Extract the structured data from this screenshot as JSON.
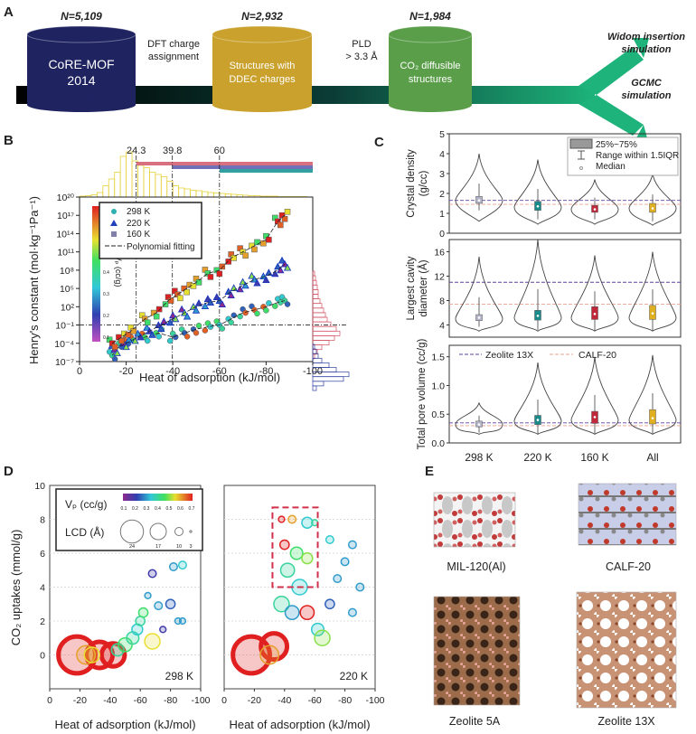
{
  "panel_labels": {
    "a": "A",
    "b": "B",
    "c": "C",
    "d": "D",
    "e": "E"
  },
  "panel_a": {
    "stages": [
      {
        "n": "N=5,109",
        "label1": "CoRE-MOF",
        "label2": "2014",
        "color": "#1f2360"
      },
      {
        "n": "N=2,932",
        "label1": "Structures with",
        "label2": "DDEC charges",
        "color": "#c9a12c"
      },
      {
        "n": "N=1,984",
        "label1": "CO₂ diffusible",
        "label2": "structures",
        "color": "#5a9e4a"
      }
    ],
    "steps": [
      {
        "line1": "DFT charge",
        "line2": "assignment"
      },
      {
        "line1": "PLD",
        "line2": "> 3.3 Å"
      }
    ],
    "outputs": [
      {
        "line1": "Widom insertion",
        "line2": "simulation"
      },
      {
        "line1": "GCMC",
        "line2": "simulation"
      }
    ],
    "arrow_color_start": "#000000",
    "arrow_color_end": "#1db37a"
  },
  "chart_data": [
    {
      "id": "B",
      "type": "scatter",
      "xlabel": "Heat of adsorption (kJ/mol)",
      "ylabel": "Henry's constant (mol·kg⁻¹Pa⁻¹)",
      "xlim": [
        0,
        -100
      ],
      "ylim": [
        1e-07,
        1e+20
      ],
      "yscale": "log",
      "xticks": [
        "0",
        "-20",
        "-40",
        "-60",
        "-80",
        "-100"
      ],
      "yticks": [
        "10⁻⁷",
        "10⁻⁴",
        "10⁻¹",
        "10²",
        "10⁵",
        "10⁸",
        "10¹¹",
        "10¹⁴",
        "10¹⁷",
        "10²⁰"
      ],
      "threshold_labels": [
        "24.3",
        "39.8",
        "60"
      ],
      "threshold_x": [
        -24.3,
        -39.8,
        -60
      ],
      "threshold_y": 0.1,
      "legend": {
        "placement": "top-left",
        "entries": [
          "298 K",
          "220 K",
          "160 K",
          "Polynomial fitting"
        ]
      },
      "colorbar": {
        "label": "Vₚ (cc/g)",
        "ticks": [
          "0.1",
          "0.2",
          "0.3",
          "0.4",
          "0.5",
          "0.6",
          "0.7"
        ]
      },
      "series": [
        {
          "name": "298 K",
          "marker": "circle",
          "points": [
            [
              -14,
              1e-06
            ],
            [
              -18,
              0.0001
            ],
            [
              -22,
              0.0003
            ],
            [
              -28,
              0.001
            ],
            [
              -34,
              0.005
            ],
            [
              -40,
              0.001
            ],
            [
              -45,
              0.005
            ],
            [
              -50,
              0.02
            ],
            [
              -55,
              0.05
            ],
            [
              -60,
              0.1
            ],
            [
              -65,
              1
            ],
            [
              -70,
              10
            ],
            [
              -75,
              30
            ],
            [
              -80,
              100.0
            ],
            [
              -85,
              500.0
            ],
            [
              -88,
              1000.0
            ]
          ]
        },
        {
          "name": "220 K",
          "marker": "triangle",
          "points": [
            [
              -15,
              1e-05
            ],
            [
              -20,
              0.0001
            ],
            [
              -25,
              0.001
            ],
            [
              -30,
              0.01
            ],
            [
              -35,
              0.1
            ],
            [
              -40,
              1
            ],
            [
              -45,
              10
            ],
            [
              -50,
              100.0
            ],
            [
              -55,
              500.0
            ],
            [
              -60,
              1000.0
            ],
            [
              -65,
              30000.0
            ],
            [
              -70,
              300000.0
            ],
            [
              -75,
              3000000.0
            ],
            [
              -80,
              10000000.0
            ],
            [
              -85,
              100000000.0
            ],
            [
              -88,
              1000000000.0
            ]
          ]
        },
        {
          "name": "160 K",
          "marker": "square",
          "points": [
            [
              -14,
              0.0001
            ],
            [
              -18,
              0.001
            ],
            [
              -22,
              0.01
            ],
            [
              -28,
              1
            ],
            [
              -33,
              10
            ],
            [
              -38,
              1000.0
            ],
            [
              -42,
              10000.0
            ],
            [
              -46,
              100000.0
            ],
            [
              -50,
              1000000.0
            ],
            [
              -55,
              30000000.0
            ],
            [
              -60,
              100000000.0
            ],
            [
              -65,
              10000000000.0
            ],
            [
              -70,
              100000000000.0
            ],
            [
              -75,
              1000000000000.0
            ],
            [
              -80,
              10000000000000.0
            ],
            [
              -85,
              1e+16
            ],
            [
              -88,
              1e+17
            ]
          ]
        }
      ],
      "top_histogram": [
        2,
        3,
        5,
        10,
        25,
        40,
        55,
        90,
        100,
        80,
        70,
        65,
        55,
        50,
        45,
        35,
        25,
        20,
        18,
        15,
        14,
        12,
        10,
        9,
        8,
        7,
        6,
        5,
        4,
        3,
        3,
        2,
        2,
        2,
        1,
        1,
        1,
        1,
        1,
        0
      ],
      "right_histogram_red": [
        2,
        3,
        4,
        5,
        6,
        6,
        8,
        10,
        12,
        14,
        16,
        20,
        26,
        30,
        24,
        18,
        10,
        5,
        2
      ],
      "right_histogram_blue": [
        0,
        0,
        0,
        0,
        0,
        0,
        0,
        0,
        0,
        0,
        2,
        4,
        6,
        10,
        18,
        26,
        40,
        34,
        12,
        4
      ]
    },
    {
      "id": "C",
      "type": "violin",
      "categories": [
        "298 K",
        "220 K",
        "160 K",
        "All"
      ],
      "box_colors": [
        "#b4b4c8",
        "#1a8a8a",
        "#c0283a",
        "#e0b020"
      ],
      "legend": {
        "placement": "top-right",
        "entries": [
          "25%~75%",
          "Range within 1.5IQR",
          "Median"
        ]
      },
      "reference_legend": [
        "Zeolite 13X",
        "CALF-20"
      ],
      "panels": [
        {
          "ylabel": "Crystal density (g/cc)",
          "ylim": [
            0,
            5
          ],
          "yticks": [
            "0",
            "1",
            "2",
            "3",
            "4",
            "5"
          ],
          "ref_zeolite13x": 1.65,
          "ref_calf20": 1.45,
          "stats": [
            {
              "min": 0.6,
              "q1": 1.5,
              "median": 1.65,
              "q3": 1.85,
              "max": 4.0,
              "mode": 1.65
            },
            {
              "min": 0.45,
              "q1": 1.15,
              "median": 1.35,
              "q3": 1.6,
              "max": 3.7,
              "mode": 1.3
            },
            {
              "min": 0.45,
              "q1": 1.05,
              "median": 1.2,
              "q3": 1.4,
              "max": 2.7,
              "mode": 1.2
            },
            {
              "min": 0.4,
              "q1": 1.05,
              "median": 1.25,
              "q3": 1.5,
              "max": 3.0,
              "mode": 1.25
            }
          ]
        },
        {
          "ylabel": "Largest cavity diameter (Å)",
          "ylim": [
            2,
            18
          ],
          "yticks": [
            "4",
            "8",
            "12",
            "16"
          ],
          "ref_zeolite13x": 11.0,
          "ref_calf20": 7.4,
          "stats": [
            {
              "min": 3,
              "q1": 4.7,
              "median": 5.2,
              "q3": 5.7,
              "max": 15.2,
              "mode": 5.0
            },
            {
              "min": 3,
              "q1": 4.8,
              "median": 5.5,
              "q3": 6.4,
              "max": 18,
              "mode": 5.2
            },
            {
              "min": 3,
              "q1": 4.9,
              "median": 5.8,
              "q3": 7.0,
              "max": 15.4,
              "mode": 5.2
            },
            {
              "min": 3,
              "q1": 4.9,
              "median": 5.9,
              "q3": 7.2,
              "max": 16,
              "mode": 5.2
            }
          ]
        },
        {
          "ylabel": "Total pore volume (cc/g)",
          "ylim": [
            0,
            1.7
          ],
          "yticks": [
            "0.0",
            "0.5",
            "1.0",
            "1.5"
          ],
          "ref_zeolite13x": 0.35,
          "ref_calf20": 0.3,
          "stats": [
            {
              "min": 0.15,
              "q1": 0.28,
              "median": 0.32,
              "q3": 0.38,
              "max": 0.7,
              "mode": 0.32
            },
            {
              "min": 0.15,
              "q1": 0.32,
              "median": 0.4,
              "q3": 0.48,
              "max": 1.4,
              "mode": 0.38
            },
            {
              "min": 0.15,
              "q1": 0.34,
              "median": 0.45,
              "q3": 0.55,
              "max": 1.5,
              "mode": 0.4
            },
            {
              "min": 0.15,
              "q1": 0.33,
              "median": 0.43,
              "q3": 0.58,
              "max": 1.53,
              "mode": 0.4
            }
          ]
        }
      ]
    },
    {
      "id": "D",
      "type": "bubble",
      "xlabel": "Heat of adsorption (kJ/mol)",
      "ylabel": "CO₂ uptakes (mmol/g)",
      "xlim": [
        0,
        -100
      ],
      "ylim": [
        -2,
        10
      ],
      "xticks": [
        "0",
        "-20",
        "-40",
        "-60",
        "-80",
        "-100"
      ],
      "yticks": [
        "0",
        "2",
        "4",
        "6",
        "8",
        "10"
      ],
      "legend": {
        "color_label": "Vₚ (cc/g)",
        "color_ticks": [
          "0.1",
          "0.2",
          "0.3",
          "0.4",
          "0.5",
          "0.6",
          "0.7"
        ],
        "size_label": "LCD (Å)",
        "size_ticks": [
          "24",
          "17",
          "10",
          "3"
        ]
      },
      "panels": [
        {
          "label": "298 K",
          "points": [
            [
              -18,
              0,
              24,
              0.7
            ],
            [
              -33,
              0,
              17,
              0.7
            ],
            [
              -42,
              0,
              15,
              0.7
            ],
            [
              -24,
              0,
              12,
              0.6
            ],
            [
              -28,
              0,
              10,
              0.55
            ],
            [
              -45,
              0.3,
              8,
              0.4
            ],
            [
              -50,
              0.6,
              9,
              0.45
            ],
            [
              -55,
              1.0,
              8,
              0.4
            ],
            [
              -58,
              1.5,
              7,
              0.35
            ],
            [
              -60,
              2.0,
              6,
              0.4
            ],
            [
              -62,
              2.5,
              6,
              0.45
            ],
            [
              -65,
              3.5,
              4,
              0.3
            ],
            [
              -68,
              4.8,
              5,
              0.2
            ],
            [
              -68,
              0.8,
              10,
              0.55
            ],
            [
              -72,
              2.9,
              5,
              0.3
            ],
            [
              -75,
              1.5,
              4,
              0.2
            ],
            [
              -80,
              3.0,
              6,
              0.25
            ],
            [
              -85,
              2.0,
              4,
              0.3
            ],
            [
              -82,
              5.2,
              5,
              0.3
            ],
            [
              -88,
              5.3,
              5,
              0.35
            ],
            [
              -88,
              2.0,
              4,
              0.3
            ]
          ]
        },
        {
          "label": "220 K",
          "highlight_box": {
            "x": [
              -32,
              -62
            ],
            "y": [
              4,
              8.7
            ]
          },
          "points": [
            [
              -18,
              0,
              24,
              0.7
            ],
            [
              -33,
              0.5,
              17,
              0.7
            ],
            [
              -30,
              0,
              12,
              0.6
            ],
            [
              -38,
              8.0,
              4,
              0.7
            ],
            [
              -45,
              8.0,
              5,
              0.6
            ],
            [
              -55,
              7.8,
              7,
              0.35
            ],
            [
              -60,
              7.8,
              4,
              0.4
            ],
            [
              -40,
              6.5,
              6,
              0.7
            ],
            [
              -48,
              6.0,
              8,
              0.45
            ],
            [
              -55,
              5.7,
              7,
              0.5
            ],
            [
              -42,
              5.0,
              9,
              0.4
            ],
            [
              -50,
              4.0,
              10,
              0.35
            ],
            [
              -38,
              3.0,
              10,
              0.4
            ],
            [
              -45,
              2.5,
              9,
              0.3
            ],
            [
              -55,
              2.5,
              9,
              0.7
            ],
            [
              -62,
              1.5,
              8,
              0.35
            ],
            [
              -65,
              1.0,
              10,
              0.5
            ],
            [
              -70,
              3.0,
              6,
              0.25
            ],
            [
              -75,
              4.5,
              5,
              0.3
            ],
            [
              -80,
              5.5,
              5,
              0.3
            ],
            [
              -85,
              6.5,
              5,
              0.3
            ],
            [
              -90,
              4.0,
              5,
              0.3
            ],
            [
              -70,
              6.8,
              5,
              0.35
            ],
            [
              -85,
              2.5,
              5,
              0.3
            ]
          ]
        }
      ]
    }
  ],
  "panel_e": {
    "structures": [
      {
        "name": "MIL-120(Al)"
      },
      {
        "name": "CALF-20"
      },
      {
        "name": "Zeolite 5A"
      },
      {
        "name": "Zeolite 13X"
      }
    ]
  }
}
